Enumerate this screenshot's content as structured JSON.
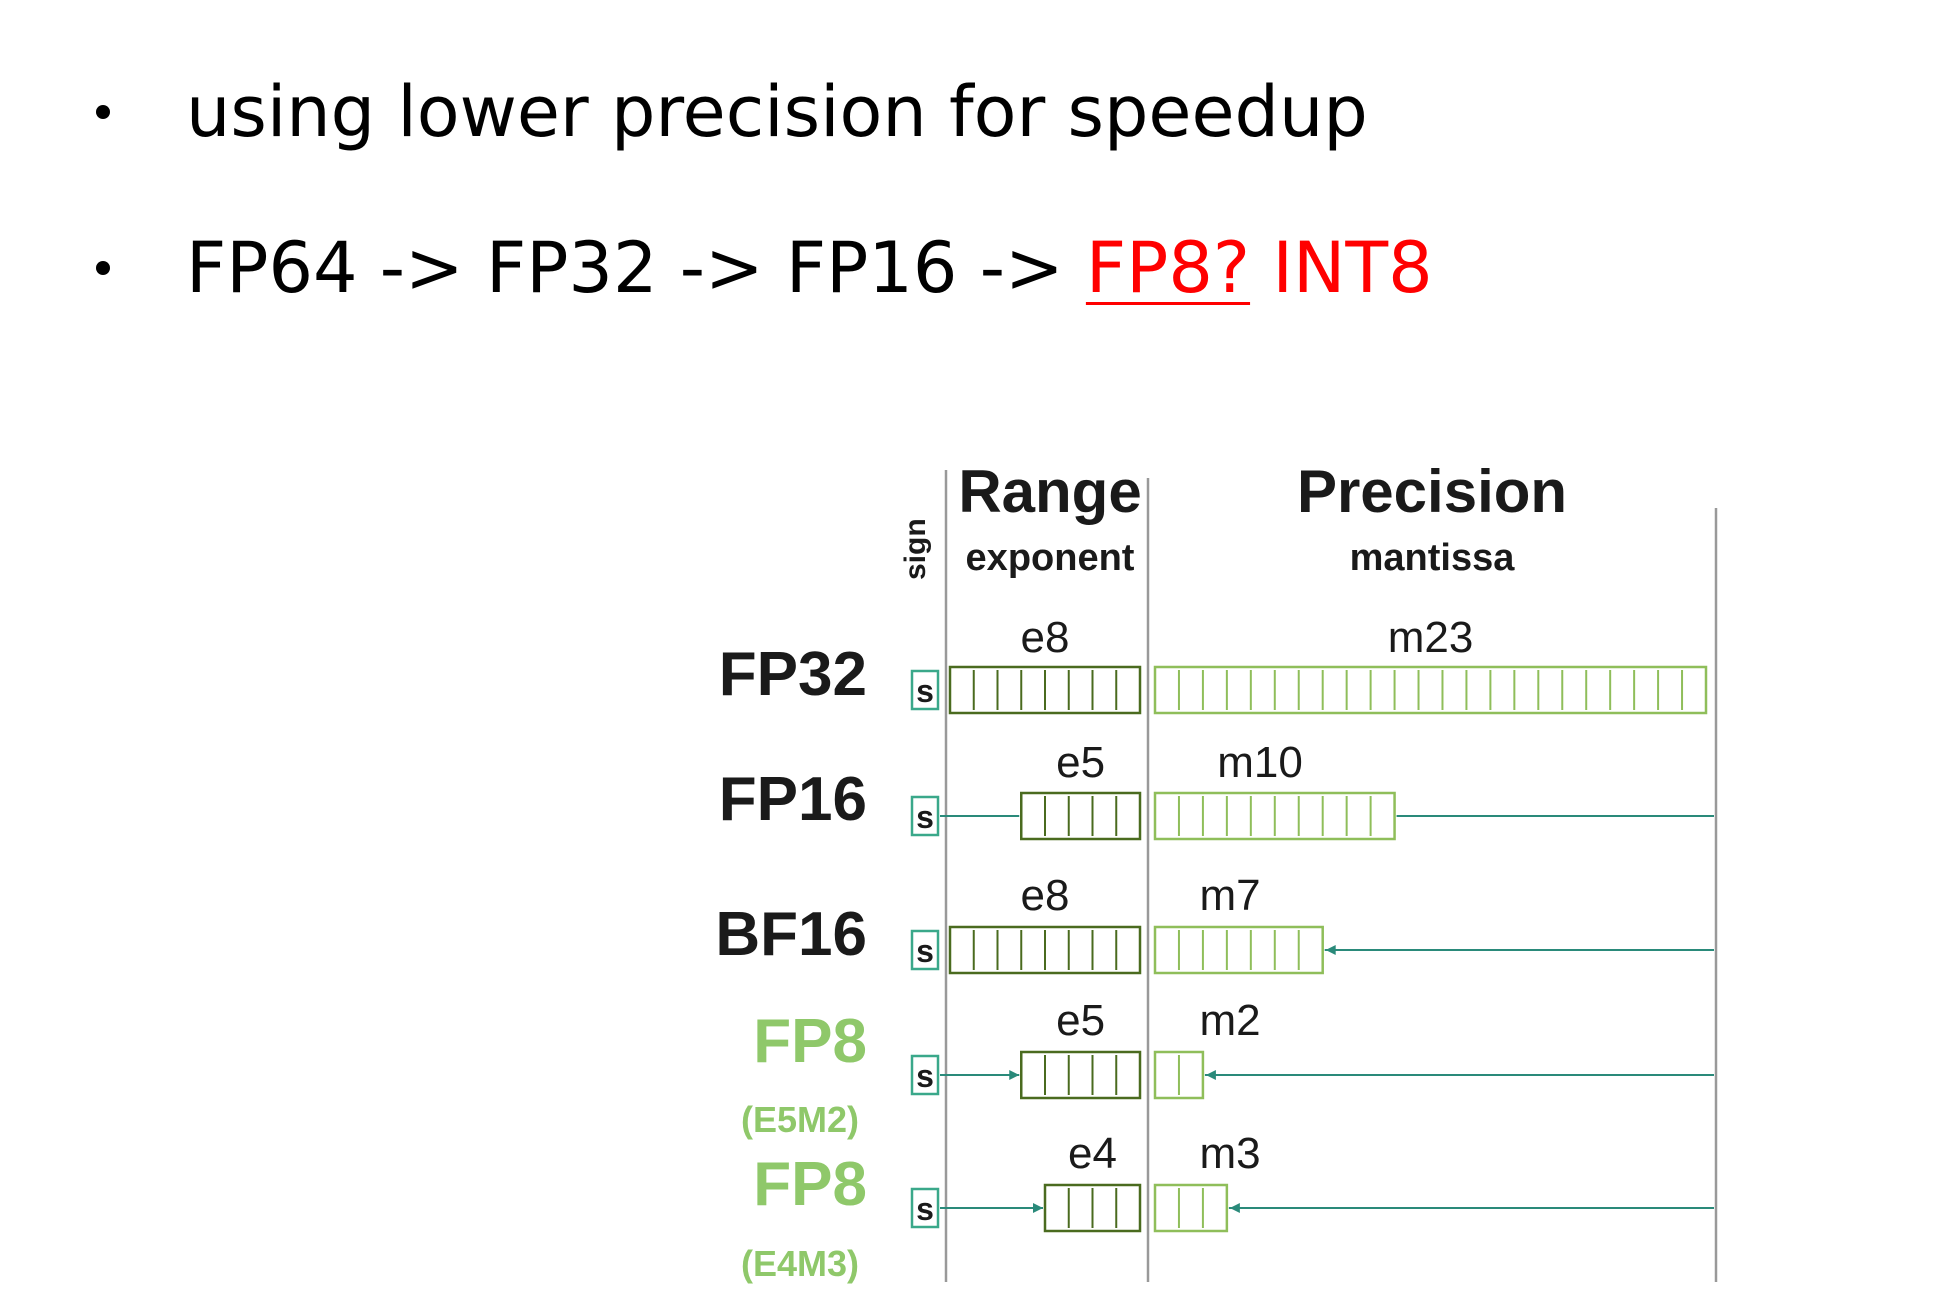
{
  "bullets": [
    {
      "text": "using lower precision for speedup"
    },
    {
      "plain": "FP64 -> FP32 -> FP16 -> ",
      "red_underlined": "FP8?",
      "red_plain": " INT8"
    }
  ],
  "diagram": {
    "sign_header": "sign",
    "range_header": "Range",
    "range_sub": "exponent",
    "precision_header": "Precision",
    "precision_sub": "mantissa",
    "sign_cell": "s",
    "colors": {
      "exp_stroke": "#4a6b1f",
      "man_stroke": "#8fbe5a",
      "sign_stroke": "#3aa88a",
      "teal_line": "#2a8a7a",
      "fp8_label": "#8fc86a",
      "black_label": "#1a1a1a",
      "highlight_red": "#ff0000"
    },
    "formats": [
      {
        "name": "FP32",
        "sub": "",
        "exp_label": "e8",
        "exp_bits": 8,
        "man_label": "m23",
        "man_bits": 23
      },
      {
        "name": "FP16",
        "sub": "",
        "exp_label": "e5",
        "exp_bits": 5,
        "man_label": "m10",
        "man_bits": 10
      },
      {
        "name": "BF16",
        "sub": "",
        "exp_label": "e8",
        "exp_bits": 8,
        "man_label": "m7",
        "man_bits": 7
      },
      {
        "name": "FP8",
        "sub": "(E5M2)",
        "exp_label": "e5",
        "exp_bits": 5,
        "man_label": "m2",
        "man_bits": 2
      },
      {
        "name": "FP8",
        "sub": "(E4M3)",
        "exp_label": "e4",
        "exp_bits": 4,
        "man_label": "m3",
        "man_bits": 3
      }
    ]
  }
}
